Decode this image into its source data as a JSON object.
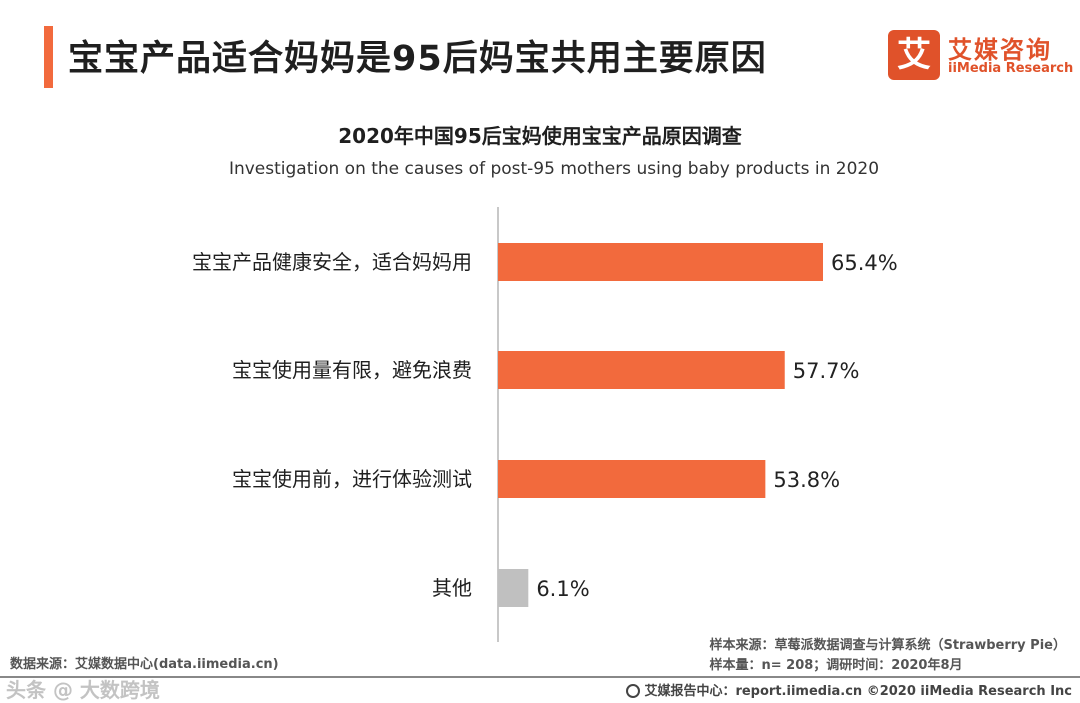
{
  "header": {
    "title": "宝宝产品适合妈妈是95后妈宝共用主要原因",
    "logo": {
      "mark": "艾",
      "cn": "艾媒咨询",
      "en": "iiMedia Research"
    }
  },
  "chart_data": {
    "type": "bar",
    "orientation": "horizontal",
    "title": "2020年中国95后宝妈使用宝宝产品原因调查",
    "subtitle": "Investigation on the causes of post-95 mothers using baby products in 2020",
    "categories": [
      "宝宝产品健康安全，适合妈妈用",
      "宝宝使用量有限，避免浪费",
      "宝宝使用前，进行体验测试",
      "其他"
    ],
    "values": [
      65.4,
      57.7,
      53.8,
      6.1
    ],
    "value_labels": [
      "65.4%",
      "57.7%",
      "53.8%",
      "6.1%"
    ],
    "unit": "%",
    "colors": [
      "#f26a3d",
      "#f26a3d",
      "#f26a3d",
      "#c0c0c0"
    ],
    "xlim": [
      0,
      100
    ],
    "grid": false,
    "legend": "none"
  },
  "footer": {
    "source": "数据来源：艾媒数据中心(data.iimedia.cn)",
    "sample_source": "样本来源：草莓派数据调查与计算系统（Strawberry Pie）",
    "sample_info": "样本量：n= 208；调研时间：2020年8月",
    "copyright": "艾媒报告中心：report.iimedia.cn   ©2020  iiMedia Research  Inc",
    "watermark": "头条 @ 大数跨境"
  }
}
